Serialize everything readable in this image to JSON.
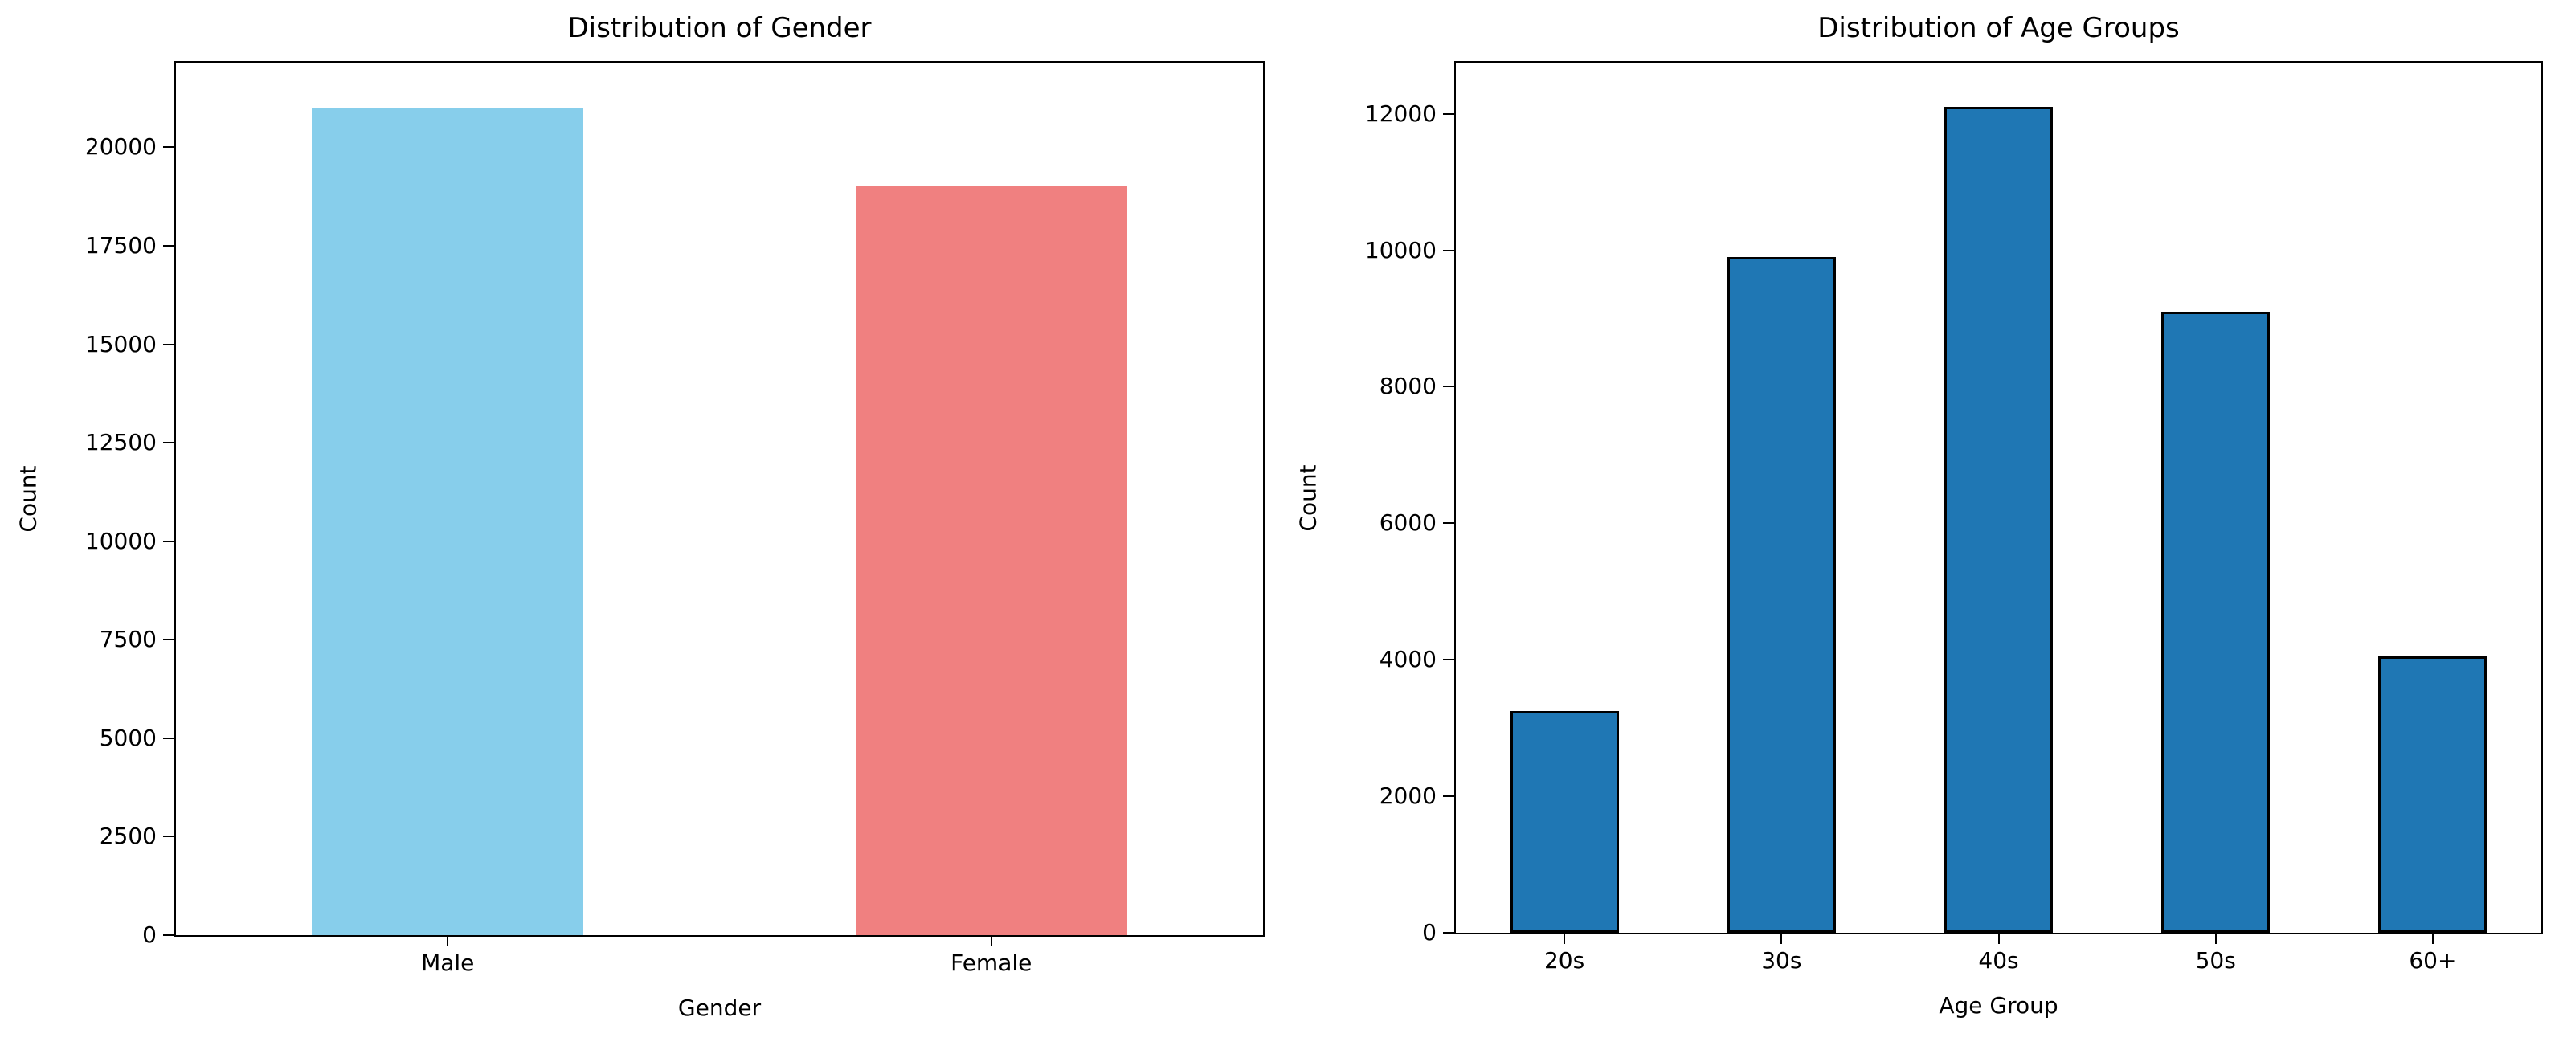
{
  "figure": {
    "background": "#ffffff",
    "text_color": "#000000"
  },
  "chart_data": [
    {
      "type": "bar",
      "title": "Distribution of Gender",
      "xlabel": "Gender",
      "ylabel": "Count",
      "categories": [
        "Male",
        "Female"
      ],
      "values": [
        21000,
        19000
      ],
      "bar_colors": [
        "#87CEEB",
        "#F08080"
      ],
      "bar_edge_color": null,
      "yticks": [
        0,
        2500,
        5000,
        7500,
        10000,
        12500,
        15000,
        17500,
        20000
      ],
      "ylim": [
        0,
        22150
      ],
      "grid": false,
      "legend": null
    },
    {
      "type": "bar",
      "title": "Distribution of Age Groups",
      "xlabel": "Age Group",
      "ylabel": "Count",
      "categories": [
        "20s",
        "30s",
        "40s",
        "50s",
        "60+"
      ],
      "values": [
        3250,
        9900,
        12100,
        9100,
        4050
      ],
      "bar_colors": [
        "#1F77B4",
        "#1F77B4",
        "#1F77B4",
        "#1F77B4",
        "#1F77B4"
      ],
      "bar_edge_color": "#000000",
      "yticks": [
        0,
        2000,
        4000,
        6000,
        8000,
        10000,
        12000
      ],
      "ylim": [
        0,
        12750
      ],
      "grid": false,
      "legend": null
    }
  ]
}
